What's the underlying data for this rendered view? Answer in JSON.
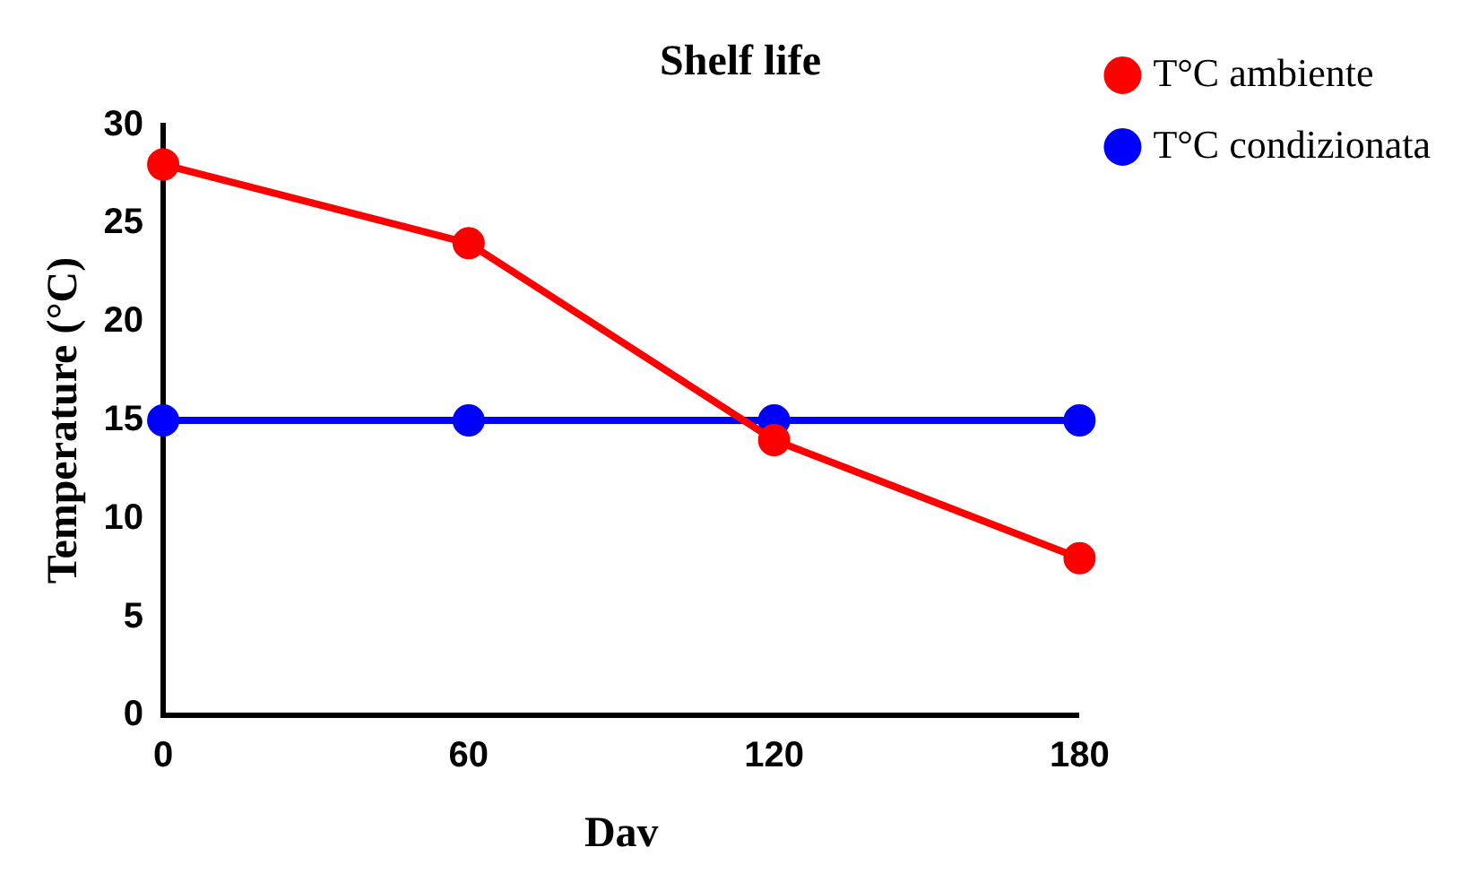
{
  "chart_data": {
    "type": "line",
    "title": "Shelf life",
    "xlabel": "Dav",
    "ylabel": "Temperature (°C)",
    "x": [
      0,
      60,
      120,
      180
    ],
    "series": [
      {
        "name": "T°C ambiente",
        "color": "#ff0000",
        "values": [
          28,
          24,
          14,
          8
        ]
      },
      {
        "name": "T°C condizionata",
        "color": "#0000ff",
        "values": [
          15,
          15,
          15,
          15
        ]
      }
    ],
    "xlim": [
      0,
      180
    ],
    "xticks": [
      0,
      60,
      120,
      180
    ],
    "ylim": [
      0,
      30
    ],
    "yticks": [
      0,
      5,
      10,
      15,
      20,
      25,
      30
    ],
    "grid": false,
    "legend": "top right",
    "marker": "circle",
    "line_style": "solid"
  }
}
